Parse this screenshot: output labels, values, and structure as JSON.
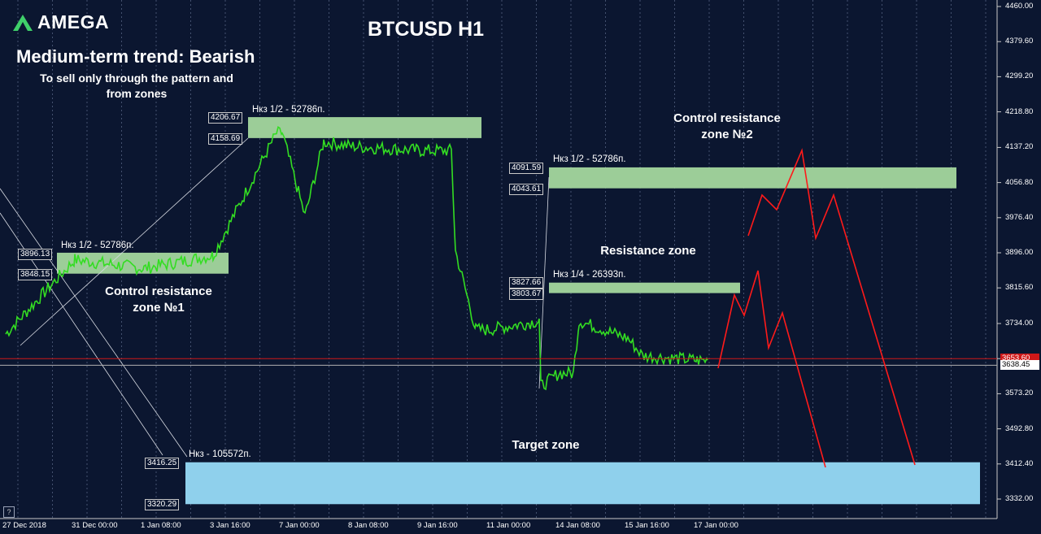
{
  "header": {
    "logo_text": "AMEGA",
    "title": "BTCUSD H1",
    "trend": "Medium-term trend: Bearish",
    "note_line1": "To sell only through the pattern and",
    "note_line2": "from zones"
  },
  "labels": {
    "control1_line1": "Control resistance",
    "control1_line2": "zone №1",
    "control2_line1": "Control resistance",
    "control2_line2": "zone №2",
    "resistance": "Resistance zone",
    "target": "Target zone"
  },
  "zone_boxes": {
    "z1_label": "Нкз 1/2 - 52786п.",
    "z1_top": "3896.13",
    "z1_bottom": "3848.15",
    "z2_label": "Нкз 1/2 - 52786п.",
    "z2_top": "4206.67",
    "z2_bottom": "4158.69",
    "z3_label": "Нкз 1/2 - 52786п.",
    "z3_top": "4091.59",
    "z3_bottom": "4043.61",
    "z4_label": "Нкз 1/4 - 26393п.",
    "z4_top": "3827.66",
    "z4_bottom": "3803.67",
    "z5_label": "Нкз - 105572п.",
    "z5_top": "3416.25",
    "z5_bottom": "3320.29"
  },
  "price_axis": {
    "ticks": [
      "4460.00",
      "4379.60",
      "4299.20",
      "4218.80",
      "4137.20",
      "4056.80",
      "3976.40",
      "3896.00",
      "3815.60",
      "3734.00",
      "3653.60",
      "3573.20",
      "3492.80",
      "3412.40",
      "3332.00"
    ],
    "current_price": "3638.45",
    "red_line_price": "3653.60"
  },
  "time_axis": {
    "ticks": [
      "27 Dec 2018",
      "31 Dec 00:00",
      "1 Jan 08:00",
      "3 Jan 16:00",
      "7 Jan 00:00",
      "8 Jan 08:00",
      "9 Jan 16:00",
      "11 Jan 00:00",
      "14 Jan 08:00",
      "15 Jan 16:00",
      "17 Jan 00:00"
    ]
  },
  "zoom_button": "?",
  "colors": {
    "background": "#0b1630",
    "price_line": "#33dd22",
    "zone_green": "#9ccd98",
    "zone_blue": "#8fd0ec",
    "forecast": "#ff1a1a",
    "grid": "#6b7a99"
  },
  "chart_data": {
    "type": "line",
    "title": "BTCUSD H1",
    "ylim": [
      3300,
      4460
    ],
    "series": [
      {
        "name": "",
        "x": [
          "27 Dec 2018",
          "31 Dec 00:00",
          "1 Jan 08:00",
          "3 Jan 16:00",
          "7 Jan 00:00",
          "8 Jan 08:00",
          "9 Jan 16:00",
          "11 Jan 00:00",
          "14 Jan 08:00",
          "15 Jan 16:00",
          "17 Jan 00:00"
        ],
        "values": [
          3710,
          3880,
          3860,
          3890,
          4170,
          4140,
          4130,
          3720,
          3620,
          3700,
          3650
        ]
      }
    ],
    "zones": [
      {
        "label": "Нкз 1/2 - 52786п.",
        "top": 3896.13,
        "bottom": 3848.15
      },
      {
        "label": "Нкз 1/2 - 52786п.",
        "top": 4206.67,
        "bottom": 4158.69
      },
      {
        "label": "Нкз 1/2 - 52786п.",
        "top": 4091.59,
        "bottom": 4043.61
      },
      {
        "label": "Нкз 1/4 - 26393п.",
        "top": 3827.66,
        "bottom": 3803.67
      },
      {
        "label": "Нкз - 105572п.",
        "top": 3416.25,
        "bottom": 3320.29
      }
    ],
    "grid": true
  }
}
